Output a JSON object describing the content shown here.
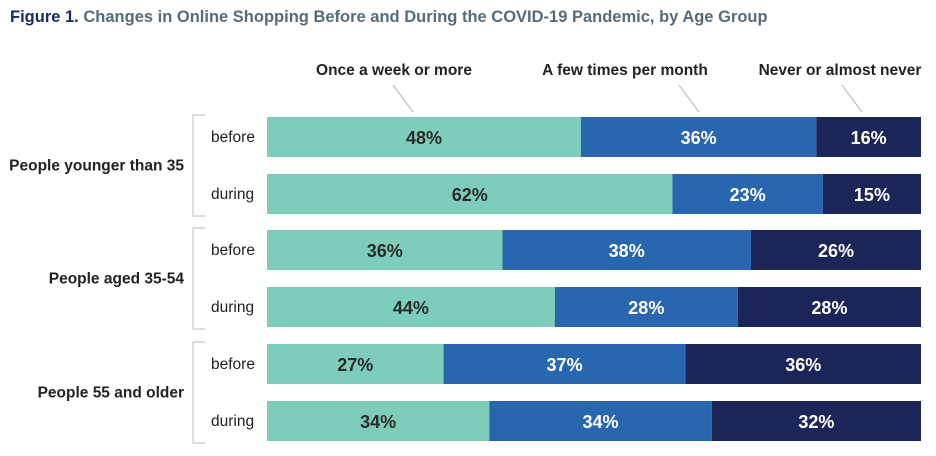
{
  "title": {
    "figure_label": "Figure 1.",
    "text": "Changes in Online Shopping Before and During the COVID-19 Pandemic, by Age Group"
  },
  "colors": {
    "Once a week or more": "#7ecdbb",
    "A few times per month": "#2966b0",
    "Never or almost never": "#1c2557"
  },
  "chart_data": {
    "type": "bar",
    "orientation": "horizontal",
    "stacked": true,
    "unit": "%",
    "title": "Changes in Online Shopping Before and During the COVID-19 Pandemic, by Age Group",
    "legend_placement": "top",
    "grid": false,
    "xlim": [
      0,
      100
    ],
    "series_names": [
      "Once a week or more",
      "A few times per month",
      "Never or almost never"
    ],
    "groups": [
      {
        "label": "People younger than 35",
        "rows": [
          {
            "label": "before",
            "values": [
              48,
              36,
              16
            ]
          },
          {
            "label": "during",
            "values": [
              62,
              23,
              15
            ]
          }
        ]
      },
      {
        "label": "People aged 35-54",
        "rows": [
          {
            "label": "before",
            "values": [
              36,
              38,
              26
            ]
          },
          {
            "label": "during",
            "values": [
              44,
              28,
              28
            ]
          }
        ]
      },
      {
        "label": "People 55 and older",
        "rows": [
          {
            "label": "before",
            "values": [
              27,
              37,
              36
            ]
          },
          {
            "label": "during",
            "values": [
              34,
              34,
              32
            ]
          }
        ]
      }
    ]
  }
}
